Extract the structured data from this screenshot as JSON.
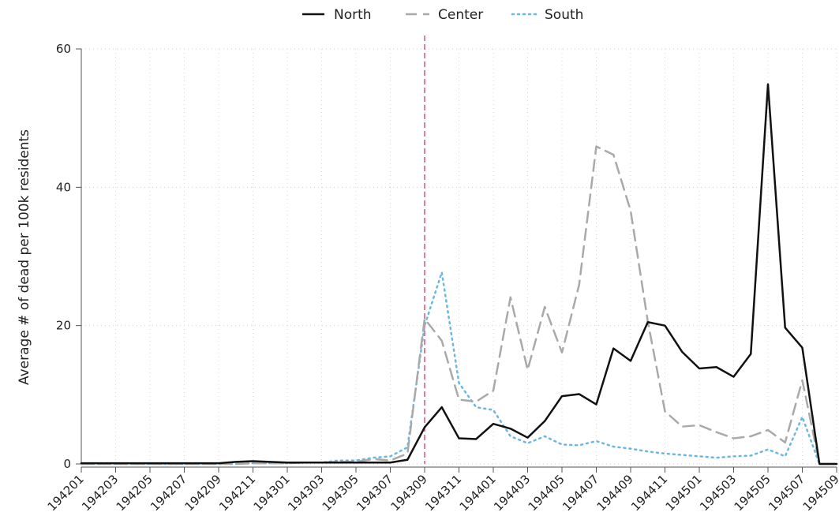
{
  "chart_data": {
    "type": "line",
    "title": "",
    "xlabel": "",
    "ylabel": "Average # of dead per 100k residents",
    "ylim": [
      0,
      60
    ],
    "yticks": [
      0,
      20,
      40,
      60
    ],
    "grid": true,
    "legend_position": "top",
    "reference_line": {
      "x": "194309",
      "color": "#d95f86",
      "style": "dashed"
    },
    "x": [
      "194201",
      "194202",
      "194203",
      "194204",
      "194205",
      "194206",
      "194207",
      "194208",
      "194209",
      "194210",
      "194211",
      "194212",
      "194301",
      "194302",
      "194303",
      "194304",
      "194305",
      "194306",
      "194307",
      "194308",
      "194309",
      "194310",
      "194311",
      "194312",
      "194401",
      "194402",
      "194403",
      "194404",
      "194405",
      "194406",
      "194407",
      "194408",
      "194409",
      "194410",
      "194411",
      "194412",
      "194501",
      "194502",
      "194503",
      "194504",
      "194505",
      "194506",
      "194507",
      "194508",
      "194509"
    ],
    "xticks": [
      "194201",
      "194203",
      "194205",
      "194207",
      "194209",
      "194211",
      "194301",
      "194303",
      "194305",
      "194307",
      "194309",
      "194311",
      "194401",
      "194403",
      "194405",
      "194407",
      "194409",
      "194411",
      "194501",
      "194503",
      "194505",
      "194507",
      "194509"
    ],
    "series": [
      {
        "name": "North",
        "color": "#111111",
        "dash": "solid",
        "values": [
          0.1,
          0.1,
          0.1,
          0.1,
          0.1,
          0.1,
          0.1,
          0.1,
          0.1,
          0.3,
          0.4,
          0.3,
          0.2,
          0.2,
          0.2,
          0.2,
          0.2,
          0.2,
          0.2,
          0.6,
          5.3,
          8.2,
          3.7,
          3.6,
          5.8,
          5.1,
          3.8,
          6.2,
          9.8,
          10.1,
          8.6,
          16.7,
          14.9,
          20.5,
          20.0,
          16.2,
          13.8,
          14.0,
          12.6,
          15.9,
          54.9,
          19.7,
          16.8,
          0.0,
          0.0
        ]
      },
      {
        "name": "Center",
        "color": "#a9a9a9",
        "dash": "longdash",
        "values": [
          0.0,
          0.0,
          0.0,
          0.0,
          0.0,
          0.0,
          0.0,
          0.0,
          0.0,
          0.0,
          0.1,
          0.1,
          0.1,
          0.2,
          0.2,
          0.3,
          0.3,
          0.7,
          0.5,
          1.5,
          21.0,
          17.8,
          9.3,
          9.0,
          10.6,
          24.1,
          13.6,
          22.7,
          16.1,
          25.9,
          45.9,
          44.7,
          36.6,
          20.6,
          7.6,
          5.4,
          5.6,
          4.6,
          3.7,
          4.0,
          4.9,
          3.1,
          12.1,
          0.0,
          0.0
        ]
      },
      {
        "name": "South",
        "color": "#6cb6e3",
        "dash": "dotted",
        "values": [
          0.0,
          0.0,
          0.0,
          0.0,
          0.0,
          0.0,
          0.0,
          0.0,
          0.0,
          0.0,
          0.1,
          0.1,
          0.1,
          0.2,
          0.2,
          0.5,
          0.5,
          0.9,
          1.1,
          2.4,
          20.0,
          27.7,
          11.7,
          8.2,
          7.8,
          4.0,
          3.0,
          4.0,
          2.8,
          2.7,
          3.3,
          2.5,
          2.2,
          1.8,
          1.5,
          1.3,
          1.1,
          0.9,
          1.1,
          1.2,
          2.1,
          1.1,
          6.8,
          0.0,
          0.0
        ]
      }
    ]
  }
}
